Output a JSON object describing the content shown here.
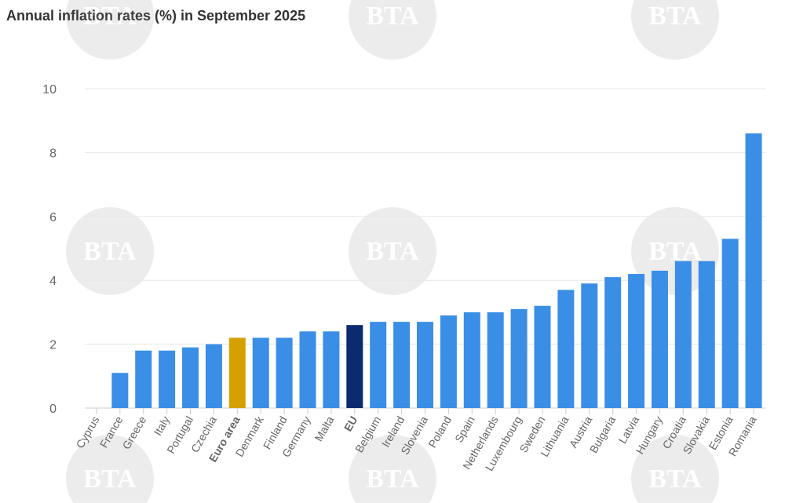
{
  "chart_data": {
    "type": "bar",
    "title": "Annual inflation rates (%) in September 2025",
    "xlabel": "",
    "ylabel": "",
    "ylim": [
      0,
      10
    ],
    "yticks": [
      "0",
      "2",
      "4",
      "6",
      "8",
      "10"
    ],
    "grid": true,
    "categories": [
      "Cyprus",
      "France",
      "Greece",
      "Italy",
      "Portugal",
      "Czechia",
      "Euro area",
      "Denmark",
      "Finland",
      "Germany",
      "Malta",
      "EU",
      "Belgium",
      "Ireland",
      "Slovenia",
      "Poland",
      "Spain",
      "Netherlands",
      "Luxembourg",
      "Sweden",
      "Lithuania",
      "Austria",
      "Bulgaria",
      "Latvia",
      "Hungary",
      "Croatia",
      "Slovakia",
      "Estonia",
      "Romania"
    ],
    "values": [
      0.0,
      1.1,
      1.8,
      1.8,
      1.9,
      2.0,
      2.2,
      2.2,
      2.2,
      2.4,
      2.4,
      2.6,
      2.7,
      2.7,
      2.7,
      2.9,
      3.0,
      3.0,
      3.1,
      3.2,
      3.7,
      3.9,
      4.1,
      4.2,
      4.3,
      4.6,
      4.6,
      5.3,
      8.6
    ],
    "highlight": {
      "Euro area": "#d4a100",
      "EU": "#0b2a6f"
    },
    "bold_categories": [
      "Euro area",
      "EU"
    ],
    "bar_color": "#3a8ee6"
  },
  "watermark": "BTA"
}
